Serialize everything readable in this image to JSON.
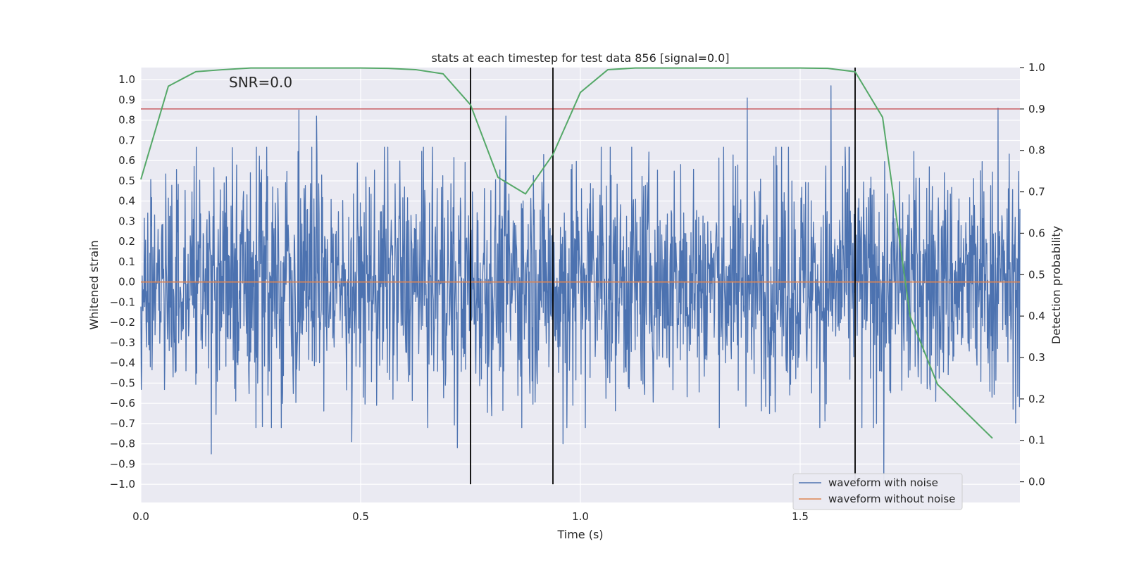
{
  "chart_data": {
    "type": "line",
    "title": "stats at each timestep for test data 856 [signal=0.0]",
    "annotation": "SNR=0.0",
    "xlabel": "Time (s)",
    "ylabel_left": "Whitened strain",
    "ylabel_right": "Detection probability",
    "xlim": [
      0.0,
      2.0
    ],
    "ylim_left": [
      -1.09,
      1.06
    ],
    "ylim_right": [
      -0.05,
      1.0
    ],
    "x_ticks": [
      "0.0",
      "0.5",
      "1.0",
      "1.5"
    ],
    "x_tick_values": [
      0.0,
      0.5,
      1.0,
      1.5
    ],
    "y_left_ticks": [
      "−1.0",
      "−0.9",
      "−0.8",
      "−0.7",
      "−0.6",
      "−0.5",
      "−0.4",
      "−0.3",
      "−0.2",
      "−0.1",
      "0.0",
      "0.1",
      "0.2",
      "0.3",
      "0.4",
      "0.5",
      "0.6",
      "0.7",
      "0.8",
      "0.9",
      "1.0"
    ],
    "y_left_tick_values": [
      -1.0,
      -0.9,
      -0.8,
      -0.7,
      -0.6,
      -0.5,
      -0.4,
      -0.3,
      -0.2,
      -0.1,
      0.0,
      0.1,
      0.2,
      0.3,
      0.4,
      0.5,
      0.6,
      0.7,
      0.8,
      0.9,
      1.0
    ],
    "y_right_ticks": [
      "0.0",
      "0.1",
      "0.2",
      "0.3",
      "0.4",
      "0.5",
      "0.6",
      "0.7",
      "0.8",
      "0.9",
      "1.0"
    ],
    "y_right_tick_values": [
      0.0,
      0.1,
      0.2,
      0.3,
      0.4,
      0.5,
      0.6,
      0.7,
      0.8,
      0.9,
      1.0
    ],
    "series": [
      {
        "name": "waveform with noise",
        "color": "#4c72b0",
        "axis": "left",
        "samples": 2048,
        "amplitude_range": [
          -1.0,
          0.98
        ],
        "notable_peaks": [
          {
            "x": 0.36,
            "y": 0.85
          },
          {
            "x": 0.4,
            "y": 0.82
          },
          {
            "x": 0.83,
            "y": 0.82
          },
          {
            "x": 1.38,
            "y": 0.91
          },
          {
            "x": 1.57,
            "y": 0.97
          },
          {
            "x": 1.95,
            "y": 0.86
          },
          {
            "x": 0.16,
            "y": -0.85
          },
          {
            "x": 0.48,
            "y": -0.79
          },
          {
            "x": 0.72,
            "y": -0.82
          },
          {
            "x": 0.96,
            "y": -0.8
          },
          {
            "x": 1.69,
            "y": -1.0
          }
        ]
      },
      {
        "name": "waveform without noise",
        "color": "#dd8452",
        "axis": "left",
        "x": [
          0.0,
          2.0
        ],
        "y": [
          0.0,
          0.0
        ]
      },
      {
        "name": "detection probability",
        "color": "#55a868",
        "axis": "right",
        "x": [
          0.0,
          0.0625,
          0.125,
          0.1875,
          0.25,
          0.3125,
          0.375,
          0.4375,
          0.5,
          0.5625,
          0.625,
          0.6875,
          0.75,
          0.8125,
          0.875,
          0.9375,
          1.0,
          1.0625,
          1.125,
          1.1875,
          1.25,
          1.3125,
          1.375,
          1.4375,
          1.5,
          1.5625,
          1.625,
          1.6875,
          1.75,
          1.8125,
          1.875,
          1.9375
        ],
        "y": [
          0.73,
          0.955,
          0.99,
          0.995,
          0.999,
          0.999,
          0.999,
          0.999,
          0.999,
          0.998,
          0.995,
          0.985,
          0.91,
          0.735,
          0.695,
          0.79,
          0.94,
          0.995,
          0.999,
          0.999,
          0.999,
          0.999,
          0.999,
          0.999,
          0.999,
          0.998,
          0.99,
          0.88,
          0.4,
          0.235,
          0.17,
          0.105
        ]
      }
    ],
    "threshold": {
      "axis": "right",
      "value": 0.9,
      "color": "#c44e52"
    },
    "vertical_markers": {
      "x": [
        0.75,
        0.9375,
        1.625
      ],
      "ymin": -1.0,
      "ymax": 1.0,
      "color": "#000000"
    },
    "legend": {
      "position": "lower-right",
      "entries": [
        {
          "label": "waveform with noise",
          "color": "#4c72b0"
        },
        {
          "label": "waveform without noise",
          "color": "#dd8452"
        }
      ]
    },
    "colors": {
      "plot_bg": "#eaeaf2",
      "grid": "#ffffff",
      "text": "#262626"
    }
  }
}
